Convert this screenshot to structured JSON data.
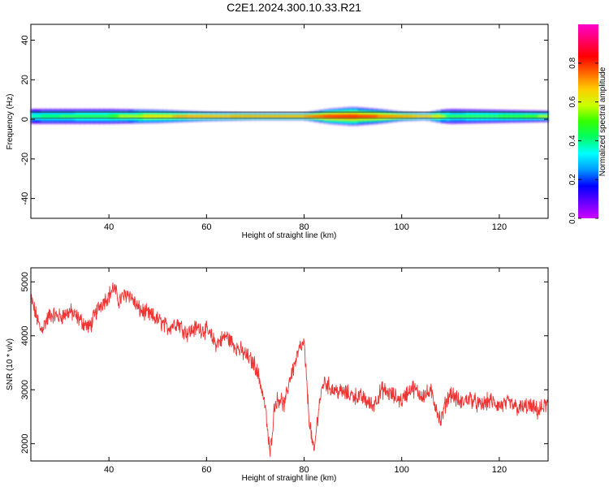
{
  "title": "C2E1.2024.300.10.33.R21",
  "chart_data": [
    {
      "type": "heatmap",
      "xlabel": "Height of straight line (km)",
      "ylabel": "Frequency (Hz)",
      "xlim": [
        24,
        130
      ],
      "ylim": [
        -50,
        48
      ],
      "xticks": [
        40,
        60,
        80,
        100,
        120
      ],
      "yticks": [
        -40,
        -20,
        0,
        20,
        40
      ],
      "colorbar": {
        "label": "Normalized spectral amplitude",
        "range": [
          0,
          1
        ],
        "ticks": [
          "0.0",
          "0.2",
          "0.4",
          "0.6",
          "0.8"
        ],
        "colormap": [
          "#cc00ff",
          "#6600ff",
          "#0000ff",
          "#0099ff",
          "#00ffff",
          "#00ff66",
          "#33ff00",
          "#ccff00",
          "#ffcc00",
          "#ff6600",
          "#ff0000",
          "#ff0066",
          "#ff00cc"
        ]
      },
      "band": {
        "center_freq": 1.5,
        "description_x": [
          24,
          30,
          40,
          50,
          60,
          70,
          80,
          85,
          90,
          95,
          100,
          105,
          108,
          110,
          120,
          130
        ],
        "peak_amplitude": [
          0.45,
          0.5,
          0.55,
          0.75,
          0.85,
          0.9,
          0.9,
          0.95,
          0.95,
          0.9,
          0.9,
          0.85,
          0.7,
          0.5,
          0.55,
          0.6
        ],
        "half_width_hz": [
          4,
          4,
          4,
          3.5,
          2.5,
          2,
          2,
          4,
          5,
          4,
          2.5,
          2,
          3.5,
          4,
          3.5,
          3
        ]
      }
    },
    {
      "type": "line",
      "xlabel": "Height of straight line (km)",
      "ylabel": "SNR (10 * v/v)",
      "xlim": [
        24,
        130
      ],
      "ylim": [
        1680,
        5260
      ],
      "xticks": [
        40,
        60,
        80,
        100,
        120
      ],
      "yticks": [
        2000,
        3000,
        4000,
        5000
      ],
      "color": "#ee3333",
      "x": [
        24,
        26,
        28,
        30,
        32,
        34,
        36,
        38,
        40,
        41,
        42,
        44,
        46,
        48,
        50,
        52,
        54,
        56,
        58,
        60,
        62,
        64,
        66,
        68,
        70,
        71,
        72,
        73,
        74,
        75,
        76,
        77,
        78,
        79,
        80,
        81,
        82,
        83,
        84,
        86,
        88,
        90,
        92,
        94,
        96,
        98,
        100,
        102,
        104,
        106,
        107,
        108,
        109,
        110,
        112,
        114,
        116,
        118,
        120,
        122,
        124,
        126,
        128,
        130
      ],
      "y": [
        4700,
        4100,
        4400,
        4350,
        4450,
        4300,
        4150,
        4550,
        4750,
        4900,
        4650,
        4800,
        4500,
        4400,
        4300,
        4150,
        4250,
        4050,
        4150,
        4100,
        3850,
        4000,
        3800,
        3650,
        3450,
        3150,
        2700,
        1800,
        2750,
        2850,
        2700,
        3200,
        3450,
        3750,
        3850,
        2500,
        1800,
        2700,
        3150,
        3000,
        2950,
        2900,
        2850,
        2700,
        3000,
        2900,
        2800,
        3050,
        2900,
        2950,
        2700,
        2400,
        2750,
        2950,
        2750,
        2850,
        2700,
        2800,
        2700,
        2750,
        2650,
        2700,
        2600,
        2750
      ]
    }
  ]
}
